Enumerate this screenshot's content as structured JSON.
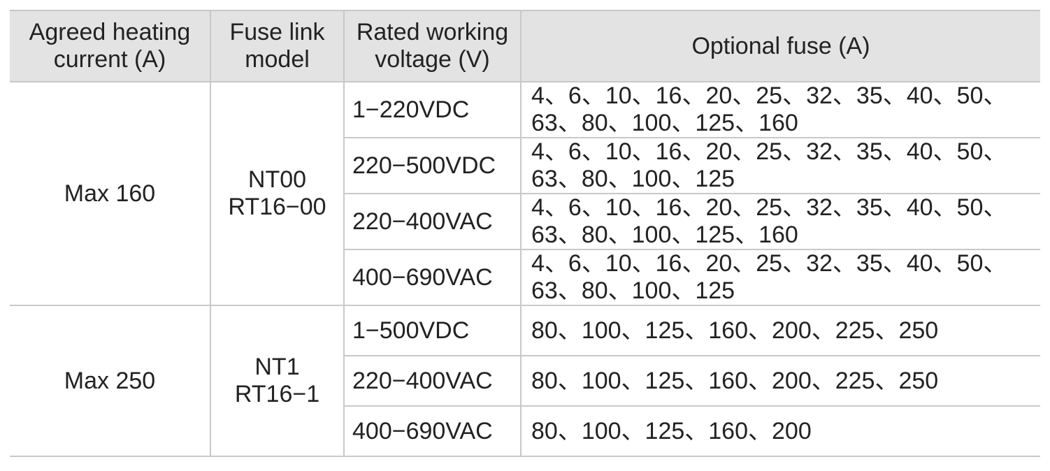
{
  "table": {
    "header": [
      [
        "Agreed heating",
        "current (A)"
      ],
      [
        "Fuse link",
        "model"
      ],
      [
        "Rated working",
        "voltage (V)"
      ],
      [
        "Optional fuse (A)"
      ]
    ],
    "groups": [
      {
        "current": "Max 160",
        "model": [
          "NT00",
          "RT16−00"
        ],
        "rows": [
          {
            "voltage": "1−220VDC",
            "fuses": [
              "4、6、10、16、20、25、32、35、40、50、",
              "63、80、100、125、160"
            ]
          },
          {
            "voltage": "220−500VDC",
            "fuses": [
              "4、6、10、16、20、25、32、35、40、50、",
              "63、80、100、125"
            ]
          },
          {
            "voltage": "220−400VAC",
            "fuses": [
              "4、6、10、16、20、25、32、35、40、50、",
              "63、80、100、125、160"
            ]
          },
          {
            "voltage": "400−690VAC",
            "fuses": [
              "4、6、10、16、20、25、32、35、40、50、",
              "63、80、100、125"
            ]
          }
        ]
      },
      {
        "current": "Max 250",
        "model": [
          "NT1",
          "RT16−1"
        ],
        "rows": [
          {
            "voltage": "1−500VDC",
            "fuses": [
              "80、100、125、160、200、225、250"
            ]
          },
          {
            "voltage": "220−400VAC",
            "fuses": [
              "80、100、125、160、200、225、250"
            ]
          },
          {
            "voltage": "400−690VAC",
            "fuses": [
              "80、100、125、160、200"
            ]
          }
        ]
      }
    ]
  }
}
